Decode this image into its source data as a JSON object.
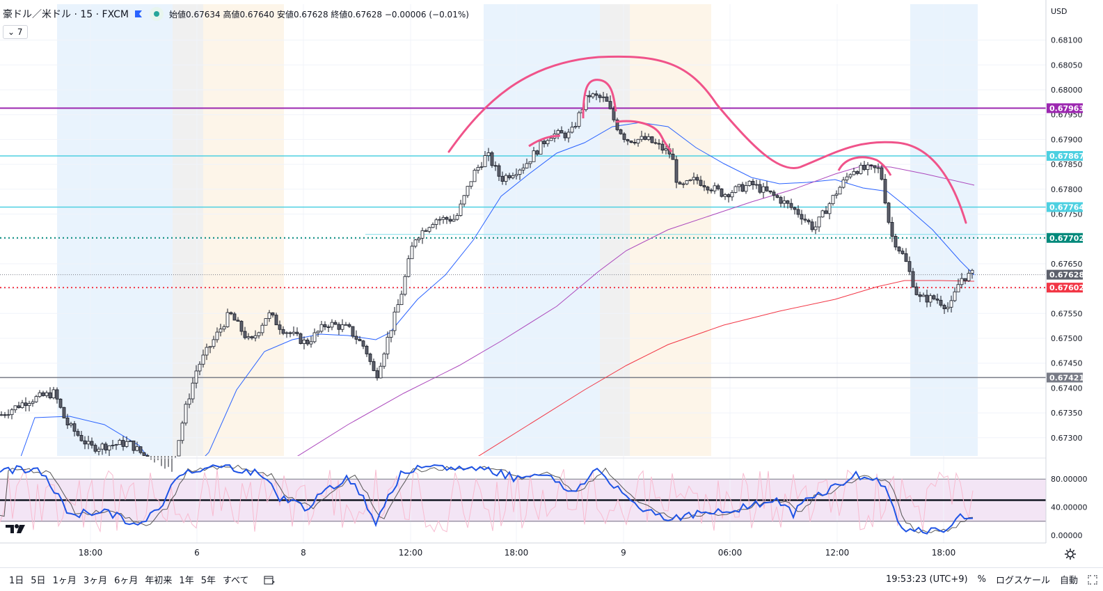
{
  "header": {
    "symbol": "豪ドル／米ドル · 15 · FXCM",
    "ohlc": {
      "open_label": "始値",
      "open": "0.67634",
      "high_label": "高値",
      "high": "0.67640",
      "low_label": "安値",
      "low": "0.67628",
      "close_label": "終値",
      "close": "0.67628",
      "change": "−0.00006 (−0.01%)"
    },
    "indicator_count": "7",
    "currency": "USD"
  },
  "price_axis": {
    "ticks": [
      "0.68100",
      "0.68050",
      "0.68000",
      "0.67950",
      "0.67900",
      "0.67850",
      "0.67800",
      "0.67750",
      "0.67700",
      "0.67650",
      "0.67600",
      "0.67550",
      "0.67500",
      "0.67450",
      "0.67400",
      "0.67350",
      "0.67300"
    ],
    "badges": [
      {
        "label": "0.67963",
        "color": "#9c27b0"
      },
      {
        "label": "0.67867",
        "color": "#4dd0e1"
      },
      {
        "label": "0.67764",
        "color": "#4dd0e1"
      },
      {
        "label": "0.67702",
        "color": "#00897b"
      },
      {
        "label": "0.67628",
        "color": "#5d606b"
      },
      {
        "label": "0.67602",
        "color": "#f23645"
      },
      {
        "label": "0.67421",
        "color": "#787b86"
      }
    ]
  },
  "oscillator_axis": {
    "ticks": [
      "80.00000",
      "40.00000",
      "0.00000"
    ]
  },
  "time_axis": {
    "ticks": [
      "18:00",
      "6",
      "8",
      "12:00",
      "18:00",
      "9",
      "06:00",
      "12:00",
      "18:00"
    ]
  },
  "bottom_bar": {
    "ranges": [
      "1日",
      "5日",
      "1ヶ月",
      "3ヶ月",
      "6ヶ月",
      "年初来",
      "1年",
      "5年",
      "すべて"
    ],
    "time": "19:53:23 (UTC+9)",
    "percent": "%",
    "log_scale": "ログスケール",
    "auto": "自動"
  },
  "colors": {
    "up": "#ffffff",
    "down": "#5d606b",
    "ma_fast": "#2962ff",
    "ma_mid": "#ab47bc",
    "ma_slow": "#f23645",
    "annotation": "#f0538a"
  }
}
